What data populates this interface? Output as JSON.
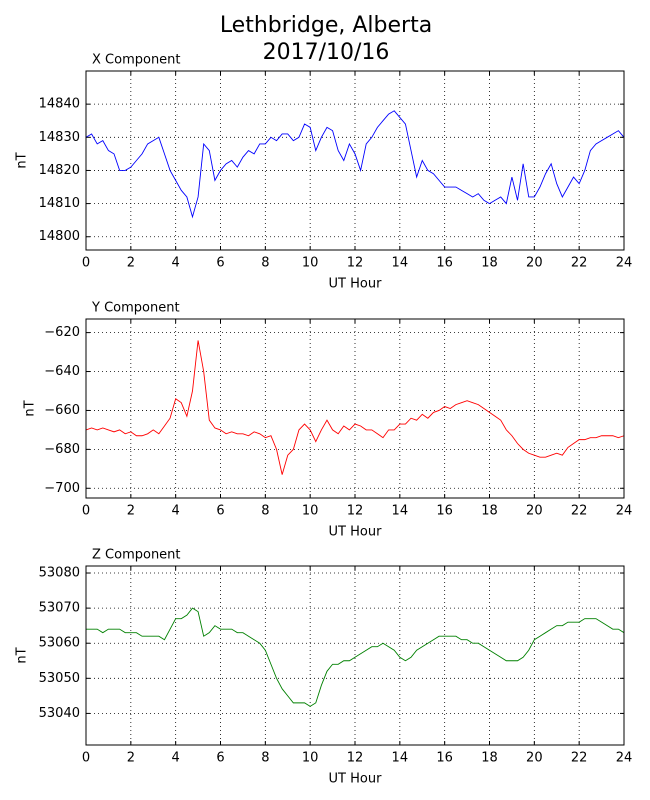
{
  "title": "Lethbridge, Alberta",
  "subtitle": "2017/10/16",
  "chart_data": [
    {
      "type": "line",
      "title": "X Component",
      "xlabel": "UT Hour",
      "ylabel": "nT",
      "x": [
        0,
        0.25,
        0.5,
        0.75,
        1,
        1.25,
        1.5,
        1.75,
        2,
        2.25,
        2.5,
        2.75,
        3,
        3.25,
        3.5,
        3.75,
        4,
        4.25,
        4.5,
        4.75,
        5,
        5.25,
        5.5,
        5.75,
        6,
        6.25,
        6.5,
        6.75,
        7,
        7.25,
        7.5,
        7.75,
        8,
        8.25,
        8.5,
        8.75,
        9,
        9.25,
        9.5,
        9.75,
        10,
        10.25,
        10.5,
        10.75,
        11,
        11.25,
        11.5,
        11.75,
        12,
        12.25,
        12.5,
        12.75,
        13,
        13.25,
        13.5,
        13.75,
        14,
        14.25,
        14.5,
        14.75,
        15,
        15.25,
        15.5,
        15.75,
        16,
        16.25,
        16.5,
        16.75,
        17,
        17.25,
        17.5,
        17.75,
        18,
        18.25,
        18.5,
        18.75,
        19,
        19.25,
        19.5,
        19.75,
        20,
        20.25,
        20.5,
        20.75,
        21,
        21.25,
        21.5,
        21.75,
        22,
        22.25,
        22.5,
        22.75,
        23,
        23.25,
        23.5,
        23.75,
        24
      ],
      "series": [
        {
          "color": "#0000ff",
          "values": [
            14830,
            14831,
            14828,
            14829,
            14826,
            14825,
            14820,
            14820,
            14821,
            14823,
            14825,
            14828,
            14829,
            14830,
            14825,
            14820,
            14817,
            14814,
            14812,
            14806,
            14812,
            14828,
            14826,
            14817,
            14820,
            14822,
            14823,
            14821,
            14824,
            14826,
            14825,
            14828,
            14828,
            14830,
            14829,
            14831,
            14831,
            14829,
            14830,
            14834,
            14833,
            14826,
            14830,
            14833,
            14832,
            14826,
            14823,
            14828,
            14825,
            14820,
            14828,
            14830,
            14833,
            14835,
            14837,
            14838,
            14836,
            14834,
            14826,
            14818,
            14823,
            14820,
            14819,
            14817,
            14815,
            14815,
            14815,
            14814,
            14813,
            14812,
            14813,
            14811,
            14810,
            14811,
            14812,
            14810,
            14818,
            14811,
            14822,
            14812,
            14812,
            14815,
            14819,
            14822,
            14816,
            14812,
            14815,
            14818,
            14816,
            14820,
            14826,
            14828,
            14829,
            14830,
            14831,
            14832,
            14830
          ]
        }
      ],
      "xlim": [
        0,
        24
      ],
      "xticks": [
        0,
        2,
        4,
        6,
        8,
        10,
        12,
        14,
        16,
        18,
        20,
        22,
        24
      ],
      "ylim": [
        14796,
        14850
      ],
      "yticks": [
        14800,
        14810,
        14820,
        14830,
        14840
      ],
      "grid": true
    },
    {
      "type": "line",
      "title": "Y Component",
      "xlabel": "UT Hour",
      "ylabel": "nT",
      "x": [
        0,
        0.25,
        0.5,
        0.75,
        1,
        1.25,
        1.5,
        1.75,
        2,
        2.25,
        2.5,
        2.75,
        3,
        3.25,
        3.5,
        3.75,
        4,
        4.25,
        4.5,
        4.75,
        5,
        5.25,
        5.5,
        5.75,
        6,
        6.25,
        6.5,
        6.75,
        7,
        7.25,
        7.5,
        7.75,
        8,
        8.25,
        8.5,
        8.75,
        9,
        9.25,
        9.5,
        9.75,
        10,
        10.25,
        10.5,
        10.75,
        11,
        11.25,
        11.5,
        11.75,
        12,
        12.25,
        12.5,
        12.75,
        13,
        13.25,
        13.5,
        13.75,
        14,
        14.25,
        14.5,
        14.75,
        15,
        15.25,
        15.5,
        15.75,
        16,
        16.25,
        16.5,
        16.75,
        17,
        17.25,
        17.5,
        17.75,
        18,
        18.25,
        18.5,
        18.75,
        19,
        19.25,
        19.5,
        19.75,
        20,
        20.25,
        20.5,
        20.75,
        21,
        21.25,
        21.5,
        21.75,
        22,
        22.25,
        22.5,
        22.75,
        23,
        23.25,
        23.5,
        23.75,
        24
      ],
      "series": [
        {
          "color": "#ff0000",
          "values": [
            -670,
            -669,
            -670,
            -669,
            -670,
            -671,
            -670,
            -672,
            -671,
            -673,
            -673,
            -672,
            -670,
            -672,
            -668,
            -664,
            -654,
            -656,
            -663,
            -650,
            -624,
            -640,
            -665,
            -669,
            -670,
            -672,
            -671,
            -672,
            -672,
            -673,
            -671,
            -672,
            -674,
            -673,
            -680,
            -693,
            -683,
            -680,
            -670,
            -667,
            -670,
            -676,
            -670,
            -665,
            -670,
            -672,
            -668,
            -670,
            -667,
            -668,
            -670,
            -670,
            -672,
            -674,
            -670,
            -670,
            -667,
            -667,
            -664,
            -665,
            -662,
            -664,
            -661,
            -660,
            -658,
            -659,
            -657,
            -656,
            -655,
            -656,
            -657,
            -659,
            -661,
            -663,
            -665,
            -670,
            -673,
            -677,
            -680,
            -682,
            -683,
            -684,
            -684,
            -683,
            -682,
            -683,
            -679,
            -677,
            -675,
            -675,
            -674,
            -674,
            -673,
            -673,
            -673,
            -674,
            -673
          ]
        }
      ],
      "xlim": [
        0,
        24
      ],
      "xticks": [
        0,
        2,
        4,
        6,
        8,
        10,
        12,
        14,
        16,
        18,
        20,
        22,
        24
      ],
      "ylim": [
        -705,
        -613
      ],
      "yticks": [
        {
          "value": -700,
          "label": "−700"
        },
        {
          "value": -680,
          "label": "−680"
        },
        {
          "value": -660,
          "label": "−660"
        },
        {
          "value": -640,
          "label": "−640"
        },
        {
          "value": -620,
          "label": "−620"
        }
      ],
      "grid": true
    },
    {
      "type": "line",
      "title": "Z Component",
      "xlabel": "UT Hour",
      "ylabel": "nT",
      "x": [
        0,
        0.25,
        0.5,
        0.75,
        1,
        1.25,
        1.5,
        1.75,
        2,
        2.25,
        2.5,
        2.75,
        3,
        3.25,
        3.5,
        3.75,
        4,
        4.25,
        4.5,
        4.75,
        5,
        5.25,
        5.5,
        5.75,
        6,
        6.25,
        6.5,
        6.75,
        7,
        7.25,
        7.5,
        7.75,
        8,
        8.25,
        8.5,
        8.75,
        9,
        9.25,
        9.5,
        9.75,
        10,
        10.25,
        10.5,
        10.75,
        11,
        11.25,
        11.5,
        11.75,
        12,
        12.25,
        12.5,
        12.75,
        13,
        13.25,
        13.5,
        13.75,
        14,
        14.25,
        14.5,
        14.75,
        15,
        15.25,
        15.5,
        15.75,
        16,
        16.25,
        16.5,
        16.75,
        17,
        17.25,
        17.5,
        17.75,
        18,
        18.25,
        18.5,
        18.75,
        19,
        19.25,
        19.5,
        19.75,
        20,
        20.25,
        20.5,
        20.75,
        21,
        21.25,
        21.5,
        21.75,
        22,
        22.25,
        22.5,
        22.75,
        23,
        23.25,
        23.5,
        23.75,
        24
      ],
      "series": [
        {
          "color": "#008000",
          "values": [
            53064,
            53064,
            53064,
            53063,
            53064,
            53064,
            53064,
            53063,
            53063,
            53063,
            53062,
            53062,
            53062,
            53062,
            53061,
            53064,
            53067,
            53067,
            53068,
            53070,
            53069,
            53062,
            53063,
            53065,
            53064,
            53064,
            53064,
            53063,
            53063,
            53062,
            53061,
            53060,
            53058,
            53054,
            53050,
            53047,
            53045,
            53043,
            53043,
            53043,
            53042,
            53043,
            53048,
            53052,
            53054,
            53054,
            53055,
            53055,
            53056,
            53057,
            53058,
            53059,
            53059,
            53060,
            53059,
            53058,
            53056,
            53055,
            53056,
            53058,
            53059,
            53060,
            53061,
            53062,
            53062,
            53062,
            53062,
            53061,
            53061,
            53060,
            53060,
            53059,
            53058,
            53057,
            53056,
            53055,
            53055,
            53055,
            53056,
            53058,
            53061,
            53062,
            53063,
            53064,
            53065,
            53065,
            53066,
            53066,
            53066,
            53067,
            53067,
            53067,
            53066,
            53065,
            53064,
            53064,
            53063
          ]
        }
      ],
      "xlim": [
        0,
        24
      ],
      "xticks": [
        0,
        2,
        4,
        6,
        8,
        10,
        12,
        14,
        16,
        18,
        20,
        22,
        24
      ],
      "ylim": [
        53031,
        53082
      ],
      "yticks": [
        53040,
        53050,
        53060,
        53070,
        53080
      ],
      "grid": true
    }
  ]
}
